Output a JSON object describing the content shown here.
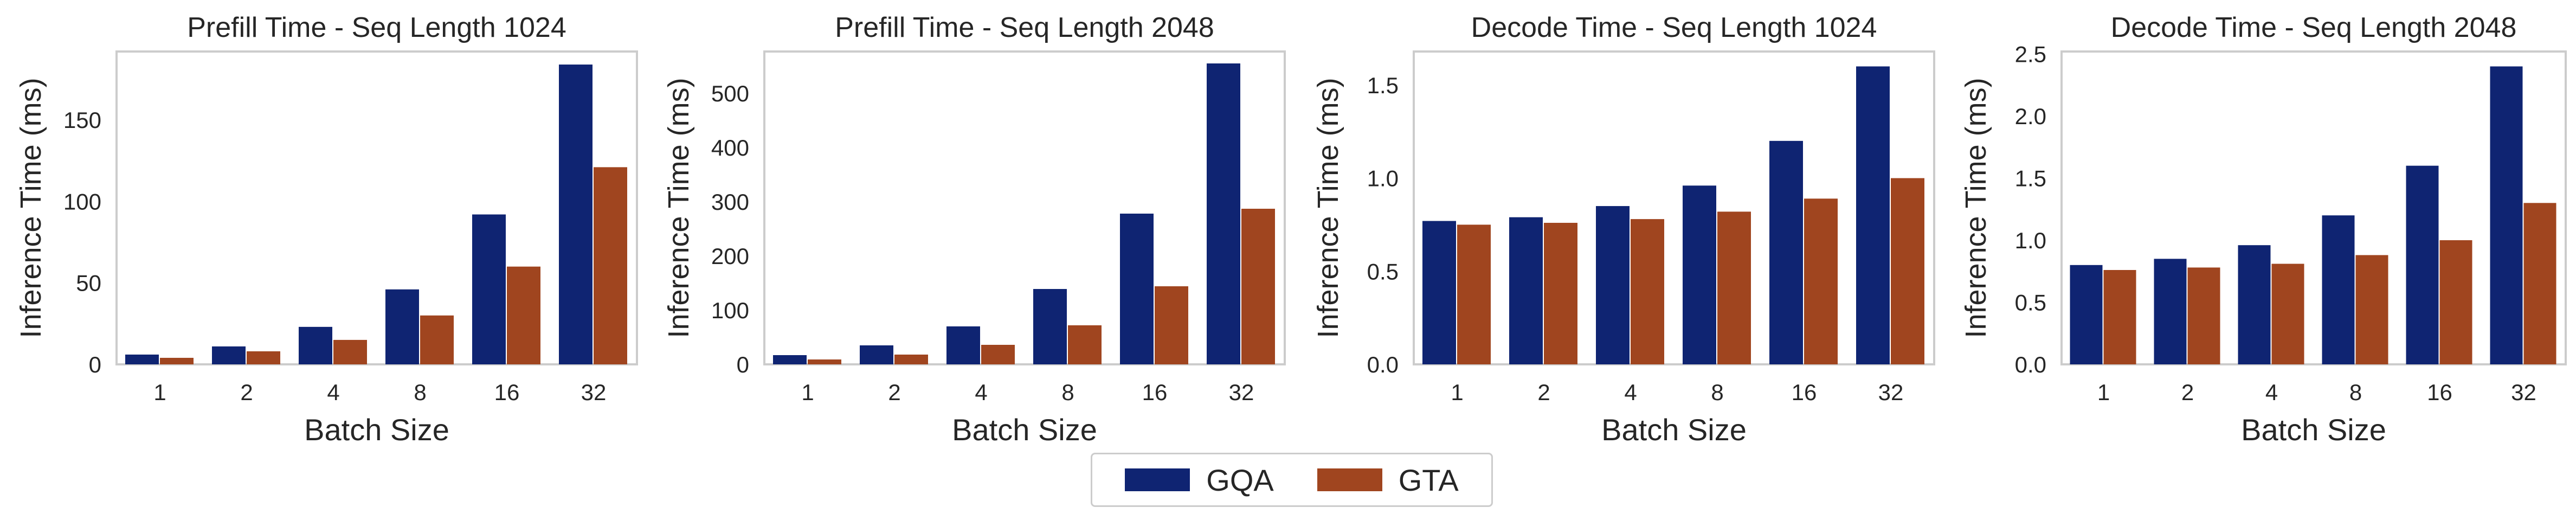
{
  "chart_data": [
    {
      "type": "bar",
      "title": "Prefill Time - Seq Length 1024",
      "xlabel": "Batch Size",
      "ylabel": "Inference Time (ms)",
      "categories": [
        "1",
        "2",
        "4",
        "8",
        "16",
        "32"
      ],
      "ylim": [
        0,
        192
      ],
      "yticks": [
        0,
        50,
        100,
        150
      ],
      "series": [
        {
          "name": "GQA",
          "values": [
            6,
            11,
            23,
            46,
            92,
            184
          ]
        },
        {
          "name": "GTA",
          "values": [
            4,
            8,
            15,
            30,
            60,
            121
          ]
        }
      ]
    },
    {
      "type": "bar",
      "title": "Prefill Time - Seq Length 2048",
      "xlabel": "Batch Size",
      "ylabel": "Inference Time (ms)",
      "categories": [
        "1",
        "2",
        "4",
        "8",
        "16",
        "32"
      ],
      "ylim": [
        0,
        577
      ],
      "yticks": [
        0,
        100,
        200,
        300,
        400,
        500
      ],
      "series": [
        {
          "name": "GQA",
          "values": [
            17,
            35,
            70,
            139,
            278,
            555
          ]
        },
        {
          "name": "GTA",
          "values": [
            9,
            18,
            36,
            72,
            144,
            287
          ]
        }
      ]
    },
    {
      "type": "bar",
      "title": "Decode Time - Seq Length 1024",
      "xlabel": "Batch Size",
      "ylabel": "Inference Time (ms)",
      "categories": [
        "1",
        "2",
        "4",
        "8",
        "16",
        "32"
      ],
      "ylim": [
        0,
        1.68
      ],
      "yticks": [
        0.0,
        0.5,
        1.0,
        1.5
      ],
      "series": [
        {
          "name": "GQA",
          "values": [
            0.77,
            0.79,
            0.85,
            0.96,
            1.2,
            1.6
          ]
        },
        {
          "name": "GTA",
          "values": [
            0.75,
            0.76,
            0.78,
            0.82,
            0.89,
            1.0
          ]
        }
      ]
    },
    {
      "type": "bar",
      "title": "Decode Time - Seq Length 2048",
      "xlabel": "Batch Size",
      "ylabel": "Inference Time (ms)",
      "categories": [
        "1",
        "2",
        "4",
        "8",
        "16",
        "32"
      ],
      "ylim": [
        0,
        2.52
      ],
      "yticks": [
        0.0,
        0.5,
        1.0,
        1.5,
        2.0,
        2.5
      ],
      "series": [
        {
          "name": "GQA",
          "values": [
            0.8,
            0.85,
            0.96,
            1.2,
            1.6,
            2.4
          ]
        },
        {
          "name": "GTA",
          "values": [
            0.76,
            0.78,
            0.81,
            0.88,
            1.0,
            1.3
          ]
        }
      ]
    }
  ],
  "legend": {
    "items": [
      {
        "label": "GQA",
        "color": "#0f2472"
      },
      {
        "label": "GTA",
        "color": "#a0451f"
      }
    ]
  },
  "colors": {
    "GQA": "#0f2472",
    "GTA": "#a0451f",
    "axes": "#cccccc",
    "text": "#262626"
  }
}
